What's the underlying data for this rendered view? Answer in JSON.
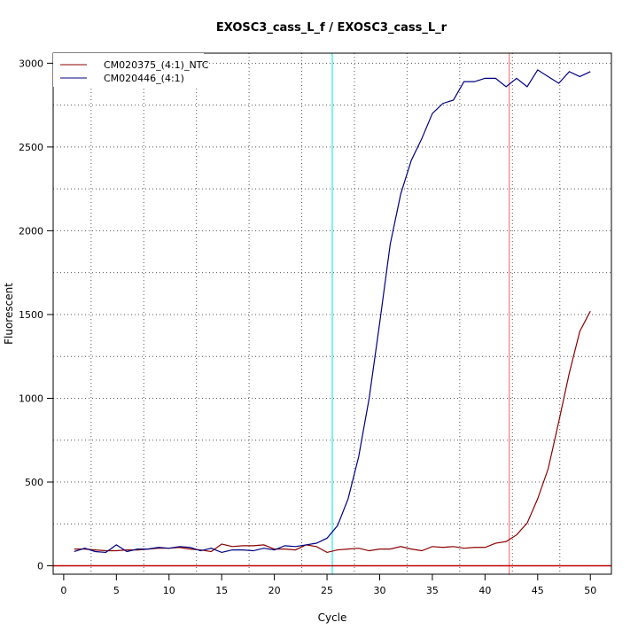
{
  "chart_data": {
    "type": "line",
    "title": "EXOSC3_cass_L_f / EXOSC3_cass_L_r",
    "xlabel": "Cycle",
    "ylabel": "Fluorescent",
    "xlim": [
      -1,
      52
    ],
    "ylim": [
      -50,
      3060
    ],
    "xticks": [
      0,
      5,
      10,
      15,
      20,
      25,
      30,
      35,
      40,
      45,
      50
    ],
    "yticks": [
      0,
      500,
      1000,
      1500,
      2000,
      2500,
      3000
    ],
    "grid": true,
    "x_dotted_lines": [
      2.6,
      7.6,
      12.6,
      17.6,
      22.6,
      27.6,
      32.6,
      37.6,
      42.6,
      47.1
    ],
    "y_dotted_lines": [
      250,
      500,
      750,
      1000,
      1250,
      1500,
      1750,
      2000,
      2250,
      2500,
      2750,
      3000
    ],
    "vertical_lines": [
      {
        "x": 25.5,
        "color": "#00e5e5"
      },
      {
        "x": 42.3,
        "color": "#ff6060"
      }
    ],
    "horizontal_lines": [
      {
        "y": 0,
        "color": "#c00000"
      }
    ],
    "legend_position": "top-left",
    "x": [
      1,
      2,
      3,
      4,
      5,
      6,
      7,
      8,
      9,
      10,
      11,
      12,
      13,
      14,
      15,
      16,
      17,
      18,
      19,
      20,
      21,
      22,
      23,
      24,
      25,
      26,
      27,
      28,
      29,
      30,
      31,
      32,
      33,
      34,
      35,
      36,
      37,
      38,
      39,
      40,
      41,
      42,
      43,
      44,
      45,
      46,
      47,
      48,
      49,
      50
    ],
    "series": [
      {
        "name": "CM020375_(4:1)_NTC",
        "color": "#8b0000",
        "values": [
          100,
          100,
          95,
          90,
          90,
          95,
          95,
          100,
          105,
          105,
          110,
          100,
          95,
          85,
          130,
          115,
          120,
          120,
          125,
          100,
          100,
          95,
          125,
          115,
          80,
          95,
          100,
          105,
          90,
          100,
          100,
          115,
          100,
          90,
          115,
          110,
          115,
          105,
          110,
          110,
          135,
          145,
          185,
          255,
          400,
          580,
          860,
          1150,
          1400,
          1520
        ]
      },
      {
        "name": "CM020446_(4:1)",
        "color": "#000080",
        "values": [
          85,
          105,
          85,
          80,
          125,
          85,
          100,
          100,
          110,
          105,
          115,
          110,
          90,
          105,
          80,
          95,
          95,
          90,
          105,
          95,
          120,
          115,
          125,
          135,
          165,
          240,
          400,
          650,
          1000,
          1450,
          1920,
          2220,
          2420,
          2550,
          2700,
          2760,
          2780,
          2890,
          2890,
          2910,
          2910,
          2860,
          2910,
          2860,
          2960,
          2920,
          2880,
          2950,
          2920,
          2950
        ]
      }
    ]
  }
}
